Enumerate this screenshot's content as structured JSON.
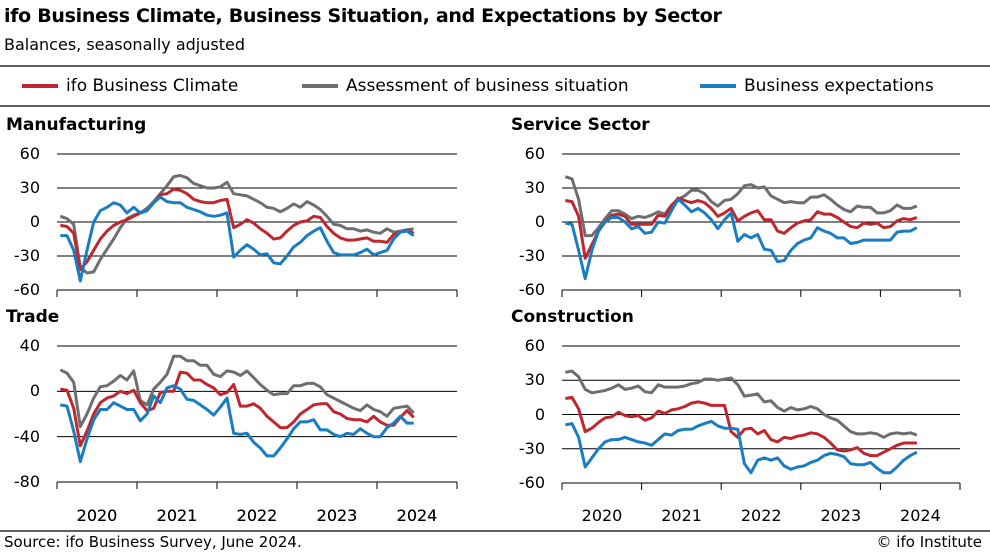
{
  "title": "ifo Business Climate, Business Situation, and Expectations by Sector",
  "subtitle": "Balances, seasonally adjusted",
  "legend": [
    {
      "label": "ifo Business Climate",
      "color": "#c0272d"
    },
    {
      "label": "Assessment of business situation",
      "color": "#6d6e70"
    },
    {
      "label": "Business expectations",
      "color": "#1a7dc2"
    }
  ],
  "source": "Source: ifo Business Survey, June 2024.",
  "copyright": "© ifo Institute",
  "chart_data": [
    {
      "type": "line",
      "title": "Manufacturing",
      "x_start": "2020-01",
      "x_end": "2024-06",
      "frequency": "monthly",
      "x_tick_labels": [
        "2020",
        "2021",
        "2022",
        "2023",
        "2024"
      ],
      "y_ticks": [
        "60",
        "30",
        "0",
        "-30",
        "-60"
      ],
      "ylim": [
        -60,
        60
      ],
      "grid": true,
      "series": [
        {
          "name": "ifo Business Climate",
          "values": [
            -3,
            -4,
            -10,
            -42,
            -35,
            -25,
            -15,
            -8,
            -3,
            0,
            2,
            5,
            8,
            10,
            17,
            24,
            25,
            29,
            28,
            25,
            20,
            18,
            17,
            17,
            19,
            20,
            -5,
            -2,
            2,
            -1,
            -6,
            -10,
            -15,
            -14,
            -8,
            -3,
            0,
            1,
            5,
            4,
            -4,
            -10,
            -14,
            -16,
            -16,
            -15,
            -14,
            -17,
            -17,
            -18,
            -11,
            -9,
            -7,
            -10
          ]
        },
        {
          "name": "Assessment of business situation",
          "values": [
            5,
            3,
            -2,
            -40,
            -45,
            -44,
            -33,
            -24,
            -15,
            -5,
            3,
            6,
            8,
            12,
            18,
            25,
            32,
            40,
            41,
            39,
            34,
            32,
            30,
            30,
            31,
            35,
            25,
            24,
            23,
            20,
            17,
            13,
            12,
            9,
            12,
            16,
            13,
            18,
            15,
            11,
            5,
            -2,
            -3,
            -6,
            -6,
            -8,
            -7,
            -9,
            -10,
            -6,
            -9,
            -8,
            -7,
            -6
          ]
        },
        {
          "name": "Business expectations",
          "values": [
            -12,
            -12,
            -25,
            -52,
            -25,
            0,
            10,
            13,
            17,
            15,
            8,
            13,
            8,
            10,
            17,
            22,
            18,
            17,
            17,
            13,
            11,
            9,
            6,
            5,
            6,
            8,
            -31,
            -25,
            -20,
            -24,
            -29,
            -28,
            -36,
            -37,
            -30,
            -22,
            -18,
            -12,
            -8,
            -5,
            -17,
            -27,
            -29,
            -29,
            -29,
            -27,
            -24,
            -29,
            -27,
            -25,
            -15,
            -9,
            -8,
            -12
          ]
        }
      ]
    },
    {
      "type": "line",
      "title": "Service Sector",
      "x_start": "2020-01",
      "x_end": "2024-06",
      "frequency": "monthly",
      "x_tick_labels": [],
      "y_ticks": [
        "60",
        "30",
        "0",
        "-30",
        "-60"
      ],
      "ylim": [
        -60,
        60
      ],
      "grid": true,
      "series": [
        {
          "name": "ifo Business Climate",
          "values": [
            19,
            18,
            5,
            -32,
            -20,
            -8,
            0,
            6,
            7,
            5,
            -2,
            -2,
            -2,
            -2,
            6,
            5,
            14,
            21,
            19,
            17,
            19,
            17,
            12,
            5,
            8,
            12,
            1,
            5,
            8,
            10,
            2,
            2,
            -8,
            -10,
            -5,
            -1,
            1,
            2,
            9,
            7,
            7,
            4,
            0,
            -4,
            -5,
            -1,
            -2,
            -1,
            -5,
            -4,
            1,
            3,
            2,
            4
          ]
        },
        {
          "name": "Assessment of business situation",
          "values": [
            40,
            38,
            20,
            -12,
            -12,
            -5,
            3,
            10,
            10,
            7,
            3,
            5,
            4,
            6,
            9,
            7,
            15,
            20,
            23,
            28,
            28,
            25,
            18,
            14,
            19,
            20,
            25,
            32,
            33,
            30,
            31,
            23,
            20,
            17,
            18,
            17,
            17,
            22,
            22,
            24,
            20,
            15,
            11,
            9,
            14,
            13,
            13,
            8,
            8,
            10,
            15,
            12,
            12,
            14
          ]
        },
        {
          "name": "Business expectations",
          "values": [
            -1,
            -2,
            -25,
            -50,
            -25,
            -8,
            0,
            4,
            4,
            0,
            -6,
            -4,
            -10,
            -9,
            0,
            -1,
            10,
            20,
            15,
            9,
            12,
            8,
            2,
            -6,
            2,
            8,
            -17,
            -11,
            -14,
            -11,
            -24,
            -25,
            -35,
            -34,
            -25,
            -19,
            -16,
            -14,
            -5,
            -8,
            -10,
            -14,
            -14,
            -19,
            -18,
            -16,
            -16,
            -16,
            -16,
            -16,
            -9,
            -8,
            -8,
            -5
          ]
        }
      ]
    },
    {
      "type": "line",
      "title": "Trade",
      "x_start": "2020-01",
      "x_end": "2024-06",
      "frequency": "monthly",
      "x_tick_labels": [
        "2020",
        "2021",
        "2022",
        "2023",
        "2024"
      ],
      "y_ticks": [
        "40",
        "0",
        "-40",
        "-80"
      ],
      "ylim": [
        -80,
        40
      ],
      "grid": true,
      "series": [
        {
          "name": "ifo Business Climate",
          "values": [
            2,
            1,
            -15,
            -48,
            -35,
            -20,
            -10,
            -6,
            -4,
            0,
            -2,
            1,
            -10,
            -17,
            -15,
            -1,
            0,
            0,
            17,
            16,
            10,
            10,
            6,
            3,
            -3,
            -1,
            6,
            -13,
            -13,
            -11,
            -15,
            -22,
            -27,
            -32,
            -32,
            -27,
            -20,
            -16,
            -12,
            -11,
            -11,
            -18,
            -20,
            -24,
            -25,
            -25,
            -27,
            -22,
            -27,
            -30,
            -30,
            -23,
            -17,
            -23
          ]
        },
        {
          "name": "Assessment of business situation",
          "values": [
            19,
            16,
            8,
            -31,
            -20,
            -6,
            4,
            5,
            9,
            14,
            10,
            18,
            -8,
            -12,
            2,
            8,
            15,
            31,
            31,
            27,
            27,
            23,
            23,
            15,
            13,
            18,
            17,
            14,
            18,
            12,
            6,
            1,
            -3,
            -2,
            -2,
            5,
            5,
            7,
            7,
            4,
            -3,
            -6,
            -9,
            -12,
            -15,
            -17,
            -12,
            -16,
            -18,
            -22,
            -15,
            -14,
            -13,
            -19
          ]
        },
        {
          "name": "Business expectations",
          "values": [
            -12,
            -13,
            -35,
            -62,
            -42,
            -25,
            -16,
            -16,
            -10,
            -13,
            -16,
            -16,
            -26,
            -20,
            -4,
            -10,
            3,
            5,
            2,
            -7,
            -8,
            -12,
            -16,
            -21,
            -14,
            -6,
            -37,
            -38,
            -37,
            -45,
            -50,
            -57,
            -57,
            -50,
            -42,
            -33,
            -27,
            -27,
            -25,
            -34,
            -34,
            -38,
            -40,
            -37,
            -38,
            -33,
            -37,
            -40,
            -40,
            -32,
            -28,
            -22,
            -28,
            -28
          ]
        }
      ]
    },
    {
      "type": "line",
      "title": "Construction",
      "x_start": "2020-01",
      "x_end": "2024-06",
      "frequency": "monthly",
      "x_tick_labels": [
        "2020",
        "2021",
        "2022",
        "2023",
        "2024"
      ],
      "y_ticks": [
        "60",
        "30",
        "0",
        "-30",
        "-60"
      ],
      "ylim": [
        -60,
        60
      ],
      "grid": true,
      "series": [
        {
          "name": "ifo Business Climate",
          "values": [
            14,
            15,
            5,
            -15,
            -12,
            -7,
            -3,
            -2,
            2,
            -1,
            -2,
            -1,
            -5,
            -3,
            3,
            1,
            4,
            5,
            7,
            10,
            11,
            10,
            8,
            8,
            8,
            -15,
            -20,
            -13,
            -12,
            -17,
            -14,
            -22,
            -24,
            -20,
            -21,
            -19,
            -18,
            -16,
            -17,
            -20,
            -25,
            -31,
            -32,
            -31,
            -29,
            -34,
            -36,
            -36,
            -33,
            -30,
            -27,
            -25,
            -25,
            -25
          ]
        },
        {
          "name": "Assessment of business situation",
          "values": [
            37,
            38,
            33,
            22,
            19,
            20,
            21,
            23,
            26,
            22,
            23,
            25,
            20,
            19,
            26,
            24,
            24,
            24,
            25,
            27,
            28,
            31,
            31,
            30,
            31,
            32,
            26,
            16,
            17,
            18,
            11,
            12,
            6,
            3,
            6,
            4,
            5,
            7,
            5,
            0,
            -3,
            -5,
            -10,
            -15,
            -17,
            -17,
            -16,
            -17,
            -20,
            -17,
            -16,
            -17,
            -16,
            -18
          ]
        },
        {
          "name": "Business expectations",
          "values": [
            -9,
            -8,
            -20,
            -46,
            -38,
            -30,
            -24,
            -22,
            -22,
            -20,
            -22,
            -24,
            -25,
            -27,
            -22,
            -17,
            -18,
            -14,
            -13,
            -13,
            -10,
            -8,
            -6,
            -10,
            -12,
            -12,
            -13,
            -43,
            -51,
            -40,
            -38,
            -40,
            -38,
            -45,
            -48,
            -46,
            -45,
            -42,
            -40,
            -36,
            -34,
            -35,
            -37,
            -43,
            -44,
            -44,
            -42,
            -47,
            -51,
            -51,
            -46,
            -40,
            -36,
            -33
          ]
        }
      ]
    }
  ]
}
